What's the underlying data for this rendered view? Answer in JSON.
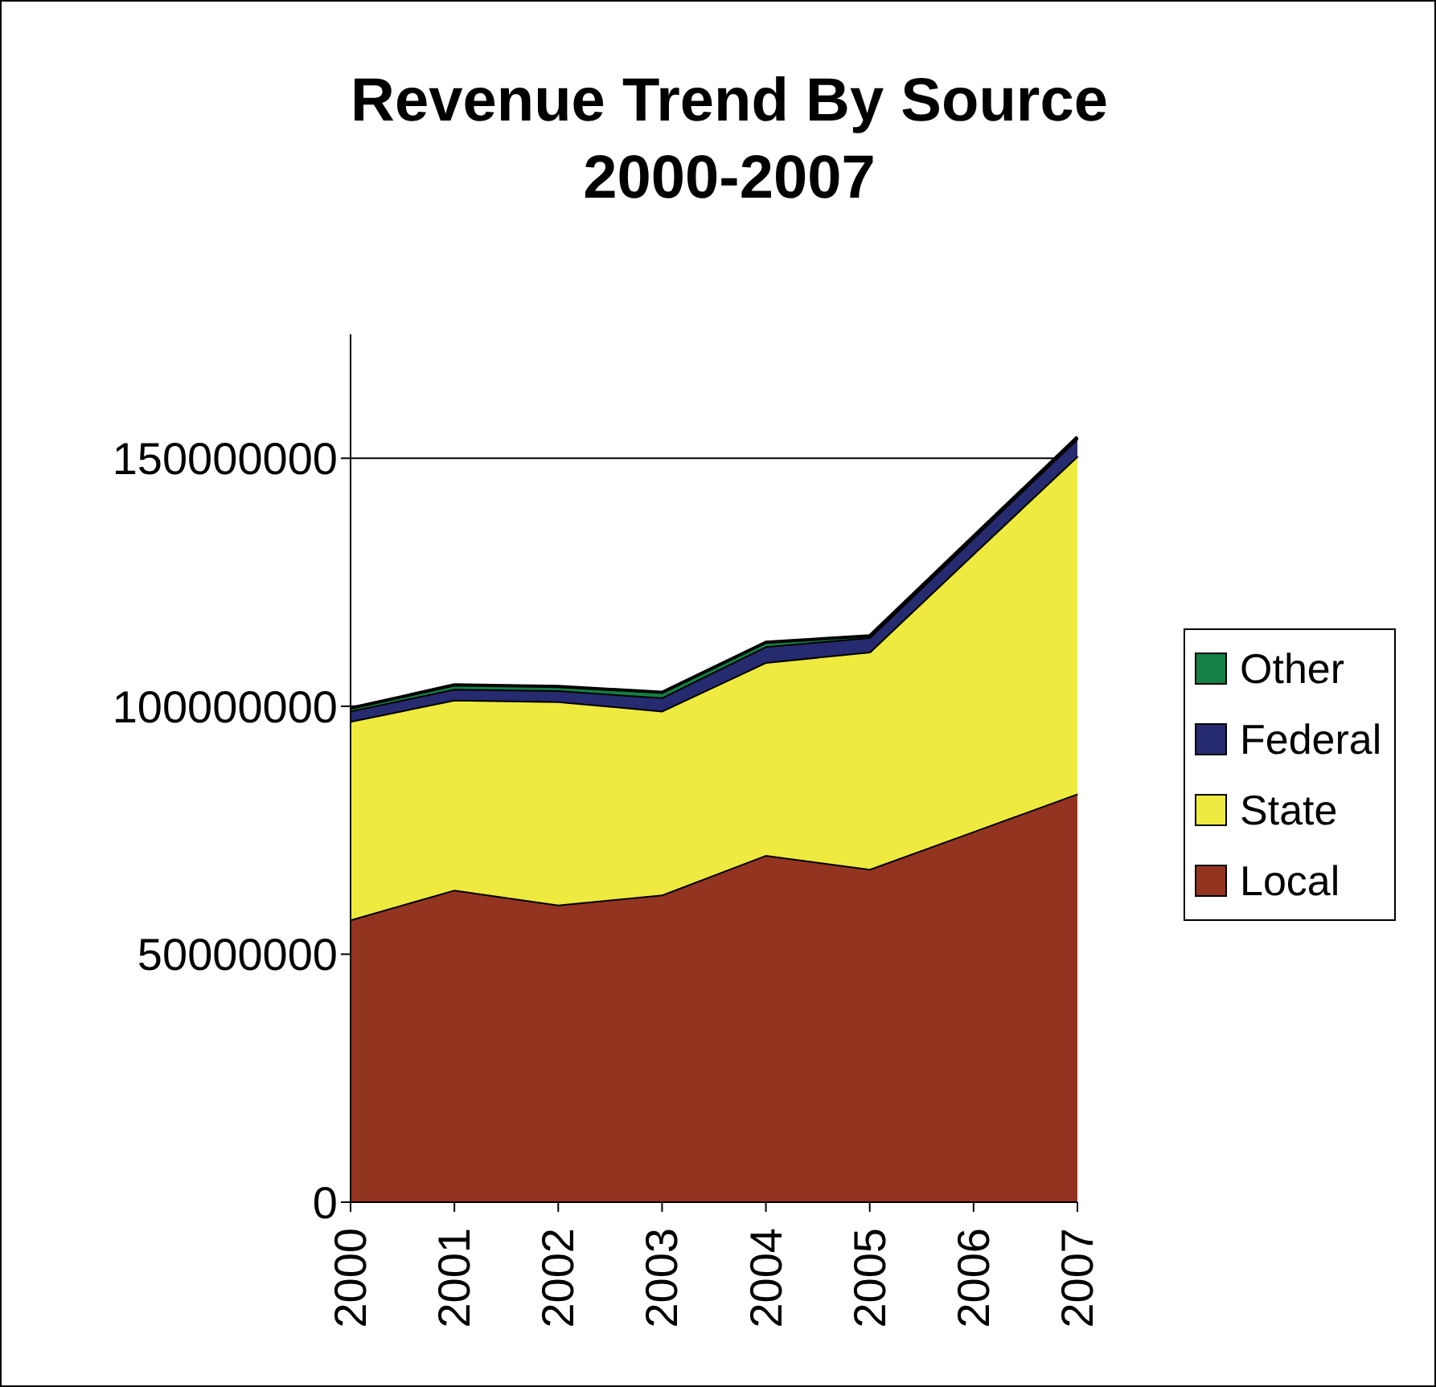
{
  "chart_data": {
    "type": "area",
    "title": "Revenue Trend By Source\n2000-2007",
    "stacked": true,
    "categories": [
      "2000",
      "2001",
      "2002",
      "2003",
      "2004",
      "2005",
      "2006",
      "2007"
    ],
    "series": [
      {
        "name": "Local",
        "color": "#933421",
        "values": [
          57000000,
          63000000,
          60000000,
          62000000,
          70000000,
          67200000,
          74800000,
          82400000
        ]
      },
      {
        "name": "State",
        "color": "#eeea40",
        "values": [
          40000000,
          38300000,
          41000000,
          37100000,
          38900000,
          43800000,
          56000000,
          68100000
        ]
      },
      {
        "name": "Federal",
        "color": "#262a6e",
        "values": [
          2100000,
          2200000,
          2200000,
          2700000,
          3200000,
          2900000,
          3200000,
          3500000
        ]
      },
      {
        "name": "Other",
        "color": "#138045",
        "values": [
          500000,
          800000,
          800000,
          1000000,
          800000,
          300000,
          300000,
          300000
        ]
      }
    ],
    "ylim": [
      0,
      175000000
    ],
    "yticks": [
      0,
      50000000,
      100000000,
      150000000
    ],
    "grid": "y",
    "legend": "right"
  }
}
